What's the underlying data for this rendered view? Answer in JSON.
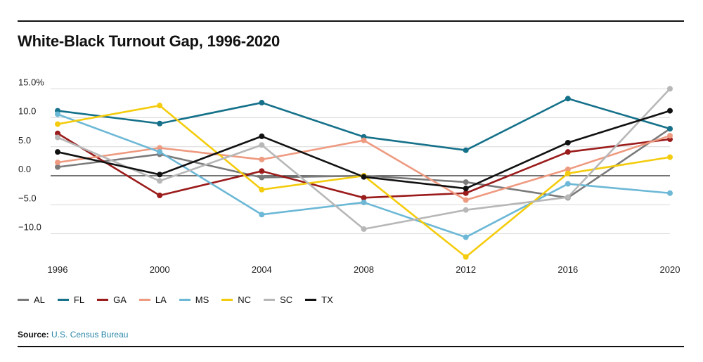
{
  "title": "White-Black Turnout Gap, 1996-2020",
  "source": {
    "label": "Source:",
    "text": "U.S. Census Bureau"
  },
  "chart_data": {
    "type": "line",
    "x": [
      1996,
      2000,
      2004,
      2008,
      2012,
      2016,
      2020
    ],
    "ylim": [
      -14,
      15
    ],
    "yticks": [
      15,
      10,
      5,
      0,
      -5,
      -10
    ],
    "ytick_labels": [
      "15.0%",
      "10.0",
      "5.0",
      "0.0",
      "−5.0",
      "−10.0"
    ],
    "xtick_labels": [
      "1996",
      "2000",
      "2004",
      "2008",
      "2012",
      "2016",
      "2020"
    ],
    "grid": true,
    "legend_position": "bottom-left",
    "series": [
      {
        "name": "AL",
        "color": "#7a7a7a",
        "values": [
          1.5,
          3.7,
          -0.3,
          0.0,
          -1.1,
          -3.8,
          8.1
        ]
      },
      {
        "name": "FL",
        "color": "#15718a",
        "values": [
          11.2,
          9.0,
          12.6,
          6.7,
          4.4,
          13.3,
          8.1
        ]
      },
      {
        "name": "GA",
        "color": "#9b1b1b",
        "values": [
          7.3,
          -3.4,
          0.8,
          -3.8,
          -3.0,
          4.1,
          6.3
        ]
      },
      {
        "name": "LA",
        "color": "#ee9a80",
        "values": [
          2.3,
          4.8,
          2.8,
          6.1,
          -4.2,
          1.1,
          6.9
        ]
      },
      {
        "name": "MS",
        "color": "#6cb8d6",
        "values": [
          10.6,
          4.1,
          -6.7,
          -4.6,
          -10.6,
          -1.4,
          -3.0
        ]
      },
      {
        "name": "NC",
        "color": "#f4cc0d",
        "values": [
          8.9,
          12.1,
          -2.4,
          0.0,
          -14.0,
          0.4,
          3.2
        ]
      },
      {
        "name": "SC",
        "color": "#b7b7b7",
        "values": [
          6.6,
          -0.9,
          5.3,
          -9.2,
          -5.9,
          -3.7,
          15.0
        ]
      },
      {
        "name": "TX",
        "color": "#111111",
        "values": [
          4.1,
          0.2,
          6.8,
          -0.2,
          -2.2,
          5.7,
          11.2
        ]
      }
    ]
  }
}
